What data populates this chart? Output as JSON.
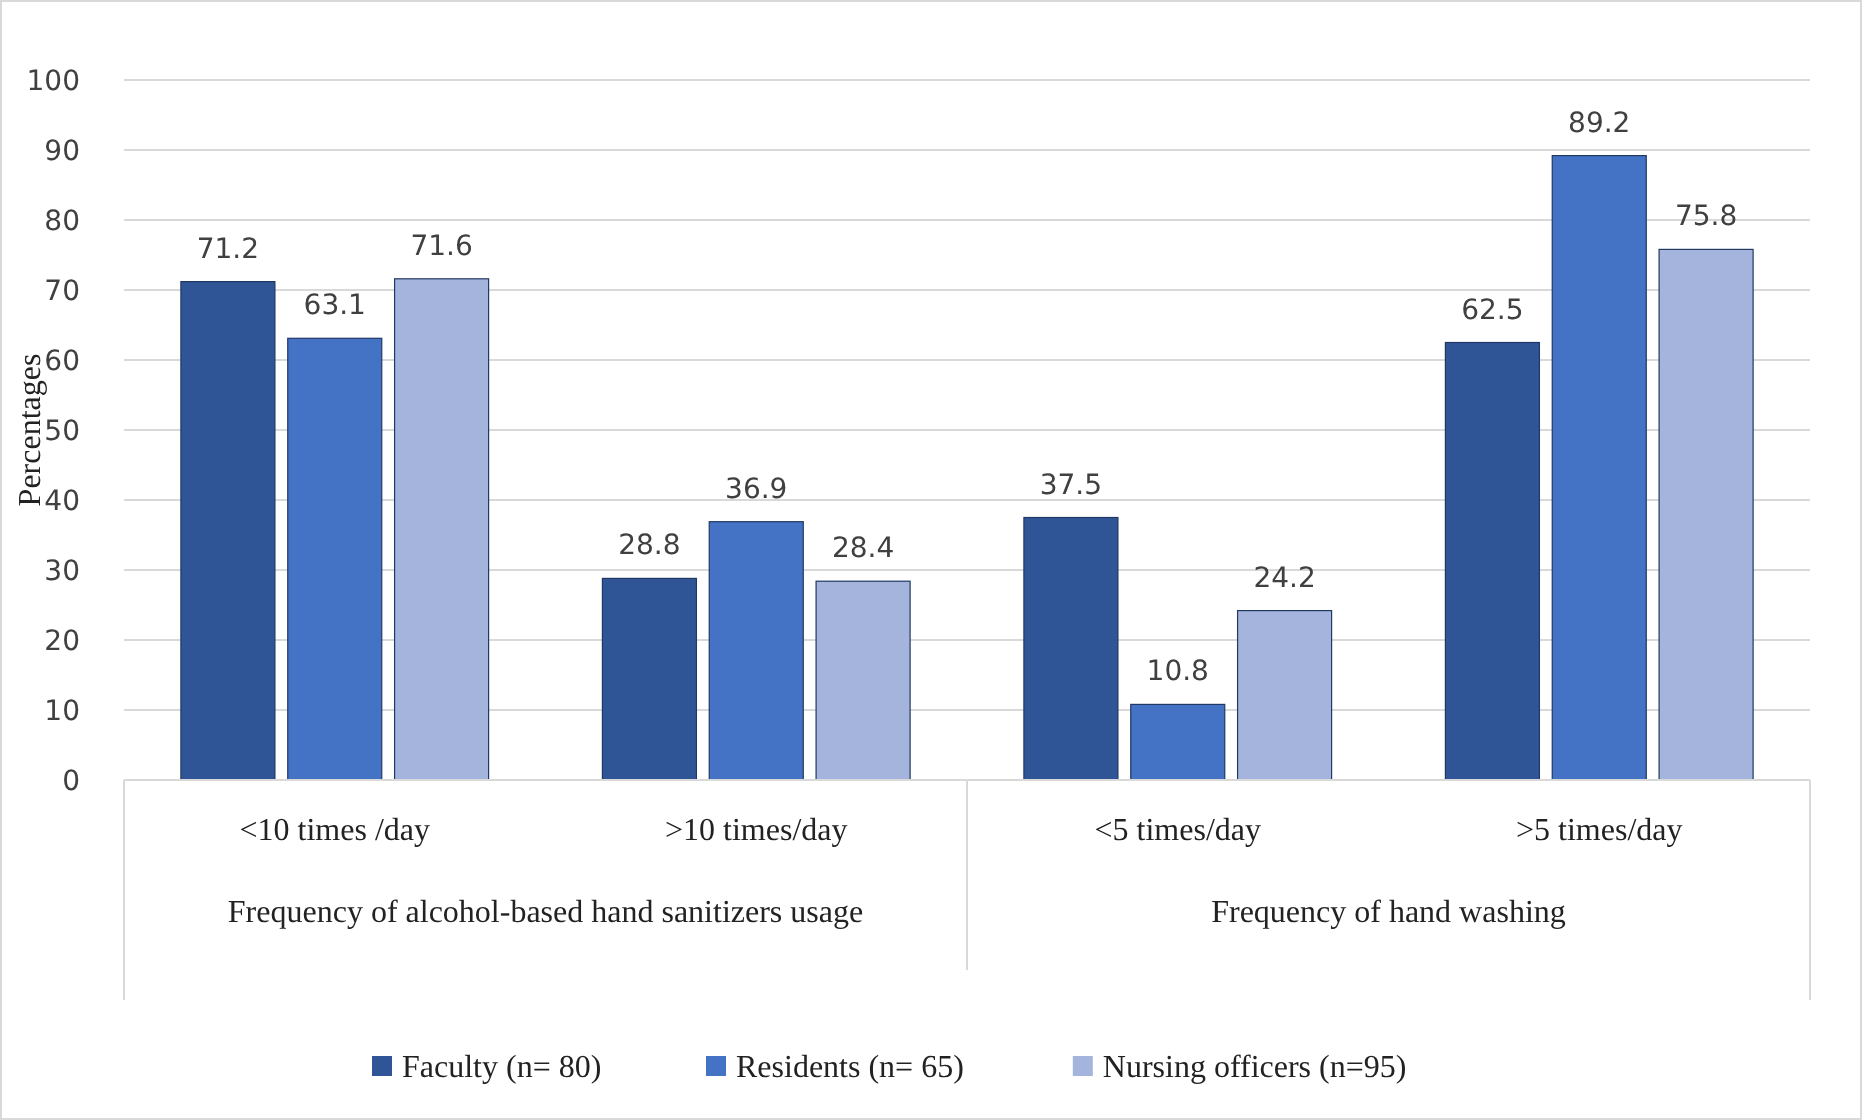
{
  "chart_data": {
    "type": "bar",
    "ylabel": "Percentages",
    "categories": [
      "<10 times /day",
      ">10 times/day",
      "<5 times/day",
      ">5 times/day"
    ],
    "series": [
      {
        "name": "Faculty (n= 80)",
        "color": "#2f5597",
        "values": [
          71.2,
          28.8,
          37.5,
          62.5
        ]
      },
      {
        "name": "Residents (n= 65)",
        "color": "#4472c4",
        "values": [
          63.1,
          36.9,
          10.8,
          89.2
        ]
      },
      {
        "name": "Nursing officers (n=95)",
        "color": "#a5b4dc",
        "values": [
          71.6,
          28.4,
          24.2,
          75.8
        ]
      }
    ],
    "annotations": [
      "Frequency of alcohol-based hand sanitizers usage",
      "Frequency of hand washing"
    ],
    "ylim": [
      0,
      100
    ],
    "yticks": [
      0,
      10,
      20,
      30,
      40,
      50,
      60,
      70,
      80,
      90,
      100
    ],
    "grid": "y",
    "data_labels": true,
    "legend": "bottom"
  }
}
